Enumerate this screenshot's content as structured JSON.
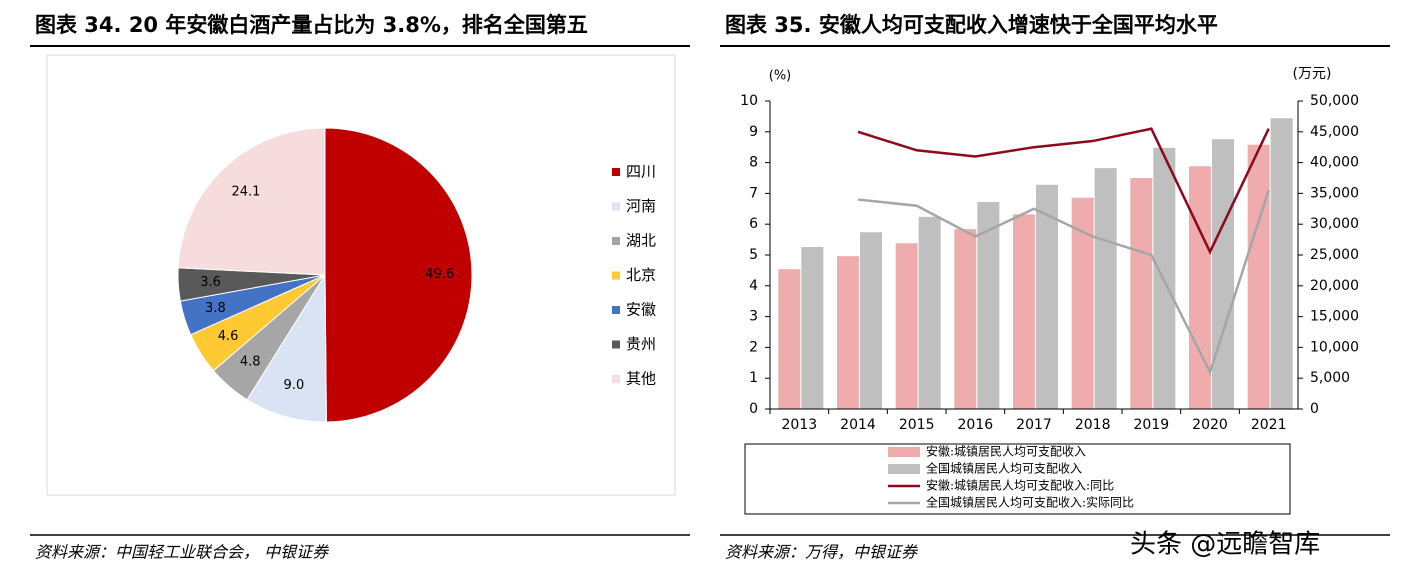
{
  "chart_data": [
    {
      "type": "pie",
      "title": "图表 34. 20 年安徽白酒产量占比为 3.8%，排名全国第五",
      "categories": [
        "四川",
        "河南",
        "湖北",
        "北京",
        "安徽",
        "贵州",
        "其他"
      ],
      "values": [
        49.6,
        9.0,
        4.8,
        4.6,
        3.8,
        3.6,
        24.1
      ],
      "value_labels": [
        "49.6",
        "9.0",
        "4.8",
        "4.6",
        "3.8",
        "3.6",
        "24.1"
      ],
      "colors": [
        "#c00000",
        "#dae3f3",
        "#a6a6a6",
        "#ffc933",
        "#4472c4",
        "#595959",
        "#f6dcdc"
      ],
      "legend": "right",
      "source": "资料来源：中国轻工业联合会， 中银证券"
    },
    {
      "type": "combo",
      "title": "图表 35. 安徽人均可支配收入增速快于全国平均水平",
      "y_label": "(%)",
      "y2_label": "(万元)",
      "categories": [
        "2013",
        "2014",
        "2015",
        "2016",
        "2017",
        "2018",
        "2019",
        "2020",
        "2021"
      ],
      "ylim": [
        0,
        10
      ],
      "yticks": [
        0,
        1,
        2,
        3,
        4,
        5,
        6,
        7,
        8,
        9,
        10
      ],
      "y2lim": [
        0,
        50000
      ],
      "y2ticks": [
        0,
        {
          "value": 5000,
          "label": "5,000"
        },
        {
          "value": 10000,
          "label": "10,000"
        },
        {
          "value": 15000,
          "label": "15,000"
        },
        {
          "value": 20000,
          "label": "20,000"
        },
        {
          "value": 25000,
          "label": "25,000"
        },
        {
          "value": 30000,
          "label": "30,000"
        },
        {
          "value": 35000,
          "label": "35,000"
        },
        {
          "value": 40000,
          "label": "40,000"
        },
        {
          "value": 45000,
          "label": "45,000"
        },
        {
          "value": 50000,
          "label": "50,000"
        }
      ],
      "series": [
        {
          "name": "安徽:城镇居民人均可支配收入",
          "type": "bar",
          "axis": "y2",
          "color": "#eeacac",
          "values": [
            22700,
            24800,
            26900,
            29200,
            31600,
            34300,
            37500,
            39400,
            42900
          ]
        },
        {
          "name": "全国城镇居民人均可支配收入",
          "type": "bar",
          "axis": "y2",
          "color": "#bfbfbf",
          "values": [
            26300,
            28700,
            31200,
            33600,
            36400,
            39100,
            42400,
            43800,
            47200
          ]
        },
        {
          "name": "安徽:城镇居民人均可支配收入:同比",
          "type": "line",
          "color": "#8b0a1e",
          "values": [
            null,
            9.0,
            8.4,
            8.2,
            8.5,
            8.7,
            9.1,
            5.1,
            9.1
          ]
        },
        {
          "name": "全国城镇居民人均可支配收入:实际同比",
          "type": "line",
          "color": "#a6a6a6",
          "values": [
            null,
            6.8,
            6.6,
            5.6,
            6.5,
            5.6,
            5.0,
            1.2,
            7.1
          ]
        }
      ],
      "source": "资料来源：万得，中银证券"
    }
  ],
  "watermark": "头条 @远瞻智库"
}
